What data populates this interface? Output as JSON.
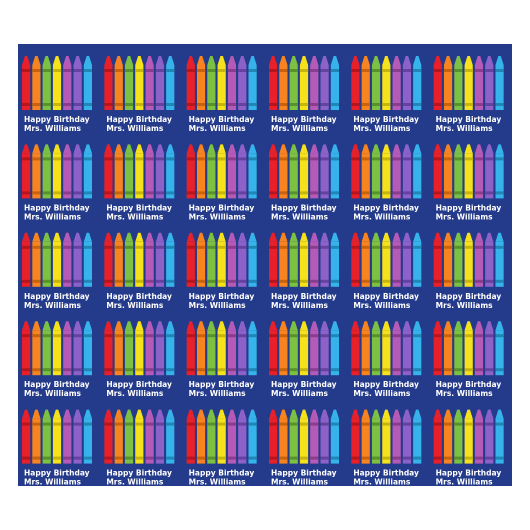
{
  "tile": {
    "line1": "Happy Birthday",
    "line2": "Mrs. Williams"
  }
}
